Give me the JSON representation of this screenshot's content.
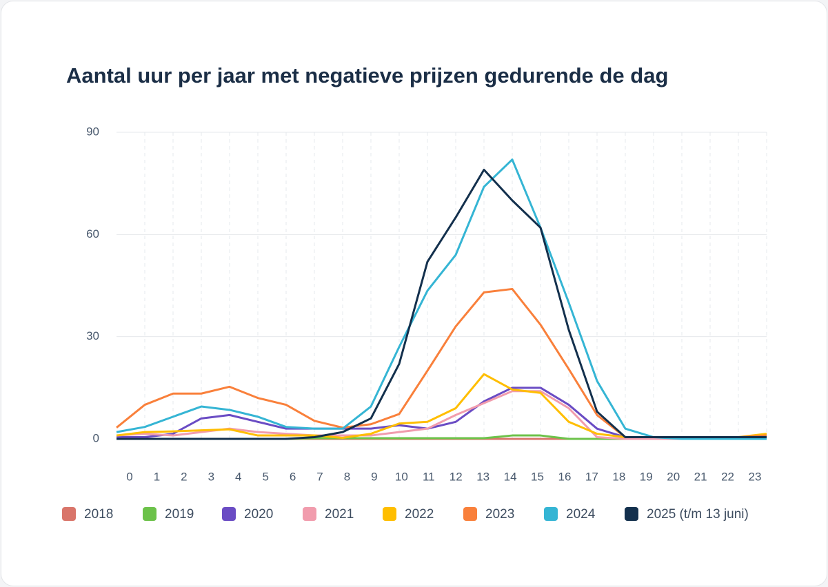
{
  "chart_data": {
    "type": "line",
    "title": "Aantal uur per jaar met negatieve prijzen gedurende de dag",
    "categories": [
      "0",
      "1",
      "2",
      "3",
      "4",
      "5",
      "6",
      "7",
      "8",
      "9",
      "10",
      "11",
      "12",
      "13",
      "14",
      "15",
      "16",
      "17",
      "18",
      "19",
      "20",
      "21",
      "22",
      "23"
    ],
    "ylim": [
      0,
      90
    ],
    "yticks": [
      0,
      30,
      60,
      90
    ],
    "grid": true,
    "legend": "bottom",
    "series": [
      {
        "name": "2018",
        "color": "#d9756a",
        "values": [
          0,
          0,
          0,
          0,
          0,
          0,
          0,
          0,
          0,
          0,
          0,
          0,
          0,
          0,
          0,
          0,
          0,
          0,
          0,
          0,
          0,
          0,
          0,
          0
        ]
      },
      {
        "name": "2019",
        "color": "#6cc24a",
        "values": [
          0,
          0,
          0,
          0,
          0,
          0,
          0,
          0.2,
          0.2,
          0.2,
          0.2,
          0.2,
          0.2,
          0.2,
          1,
          1,
          0,
          0,
          0,
          0,
          0,
          0,
          0,
          0
        ]
      },
      {
        "name": "2020",
        "color": "#6a4cc4",
        "values": [
          0.5,
          0.5,
          1.5,
          6,
          7,
          5,
          3,
          3,
          3,
          3,
          4,
          3,
          5,
          11,
          15,
          15,
          10,
          3,
          0.5,
          0,
          0,
          0,
          0,
          0
        ]
      },
      {
        "name": "2021",
        "color": "#f19cad",
        "values": [
          1,
          1.5,
          1,
          2,
          3,
          2,
          1.5,
          1,
          1,
          1,
          2,
          3,
          7,
          10.5,
          14,
          14,
          9,
          0.5,
          0,
          0,
          0,
          0,
          0,
          0
        ]
      },
      {
        "name": "2022",
        "color": "#ffbe00",
        "values": [
          1,
          2,
          2.2,
          2.5,
          2.8,
          1,
          1,
          1,
          0.3,
          1.5,
          4.5,
          5,
          9,
          19,
          14.5,
          13.5,
          5,
          1.5,
          0.5,
          0.5,
          0.5,
          0.5,
          0.5,
          1.5
        ]
      },
      {
        "name": "2023",
        "color": "#f9803b",
        "values": [
          3.3,
          10,
          13.3,
          13.3,
          15.3,
          12,
          10,
          5.3,
          3.3,
          4.3,
          7.3,
          20,
          33,
          43,
          44,
          33.5,
          20.5,
          7,
          0.5,
          0.5,
          0.5,
          0.5,
          0.5,
          1
        ]
      },
      {
        "name": "2024",
        "color": "#35b5d4",
        "values": [
          2,
          3.5,
          6.5,
          9.5,
          8.5,
          6.5,
          3.5,
          3,
          3,
          9.5,
          27,
          43.5,
          54,
          74,
          82,
          62,
          40,
          17,
          3,
          0.5,
          0,
          0,
          0,
          0
        ]
      },
      {
        "name": "2025 (t/m 13 juni)",
        "color": "#13304d",
        "values": [
          0,
          0,
          0,
          0,
          0,
          0,
          0,
          0.5,
          2,
          6,
          22,
          52,
          65,
          79,
          70,
          62,
          32,
          8,
          0.5,
          0.5,
          0.5,
          0.5,
          0.5,
          0.5
        ]
      }
    ]
  }
}
